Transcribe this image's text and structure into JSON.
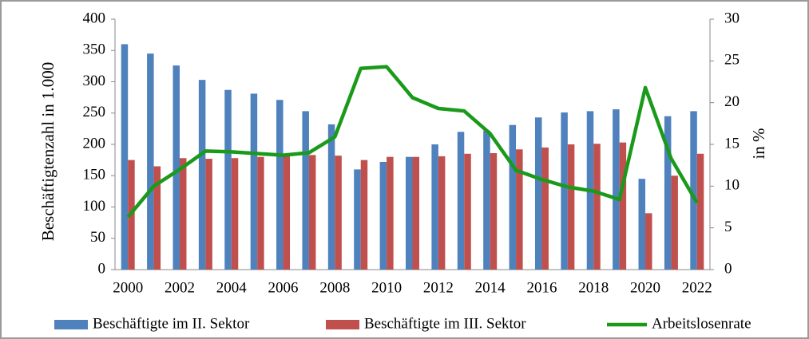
{
  "chart_data": {
    "type": "bar",
    "categories": [
      2000,
      null,
      2002,
      null,
      2004,
      null,
      2006,
      null,
      2008,
      null,
      2010,
      null,
      2012,
      null,
      2014,
      null,
      2016,
      null,
      2018,
      null,
      2020,
      null,
      2022
    ],
    "series": [
      {
        "name": "Beschäftigte im II. Sektor",
        "type": "bar",
        "color": "#4f81bd",
        "values": [
          360,
          345,
          326,
          303,
          287,
          281,
          271,
          253,
          232,
          160,
          172,
          180,
          200,
          220,
          222,
          231,
          243,
          251,
          253,
          256,
          145,
          245,
          253
        ]
      },
      {
        "name": "Beschäftigte im III. Sektor",
        "type": "bar",
        "color": "#c0504d",
        "values": [
          175,
          165,
          178,
          177,
          178,
          180,
          181,
          183,
          182,
          175,
          180,
          180,
          181,
          185,
          186,
          192,
          195,
          200,
          201,
          203,
          90,
          150,
          185
        ]
      },
      {
        "name": "Arbeitslosenrate",
        "type": "line",
        "axis": "y2",
        "color": "#1a9a1a",
        "values": [
          6.3,
          10,
          12,
          14.2,
          14.1,
          13.9,
          13.7,
          14,
          15.9,
          24.1,
          24.3,
          20.6,
          19.3,
          19,
          16.3,
          11.9,
          10.8,
          9.9,
          9.4,
          8.4,
          21.8,
          13.3,
          8
        ]
      }
    ],
    "ylabel": "Beschäftigtenzahl in 1.000",
    "y2label": "in %",
    "ylim": [
      0,
      400
    ],
    "yticks": [
      0,
      50,
      100,
      150,
      200,
      250,
      300,
      350,
      400
    ],
    "y2lim": [
      0,
      30
    ],
    "y2ticks": [
      0,
      5,
      10,
      15,
      20,
      25,
      30
    ],
    "grid": false,
    "legend": "bottom"
  }
}
